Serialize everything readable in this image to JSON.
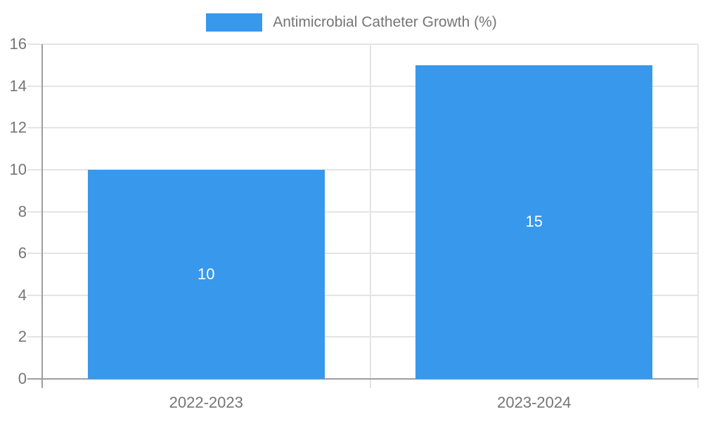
{
  "chart_data": {
    "type": "bar",
    "title": "",
    "series_name": "Antimicrobial Catheter Growth (%)",
    "categories": [
      "2022-2023",
      "2023-2024"
    ],
    "values": [
      10,
      15
    ],
    "bar_value_labels": [
      "10",
      "15"
    ],
    "xlabel": "",
    "ylabel": "",
    "ylim": [
      0,
      16
    ],
    "yticks": [
      0,
      2,
      4,
      6,
      8,
      10,
      12,
      14,
      16
    ],
    "grid": true,
    "legend_position": "top-center"
  },
  "colors": {
    "bar": "#3898ec",
    "axis_line": "#9e9e9e",
    "gridline": "#e4e4e4",
    "tick_text": "#757575",
    "bar_label_text": "#ffffff",
    "background": "#ffffff"
  }
}
